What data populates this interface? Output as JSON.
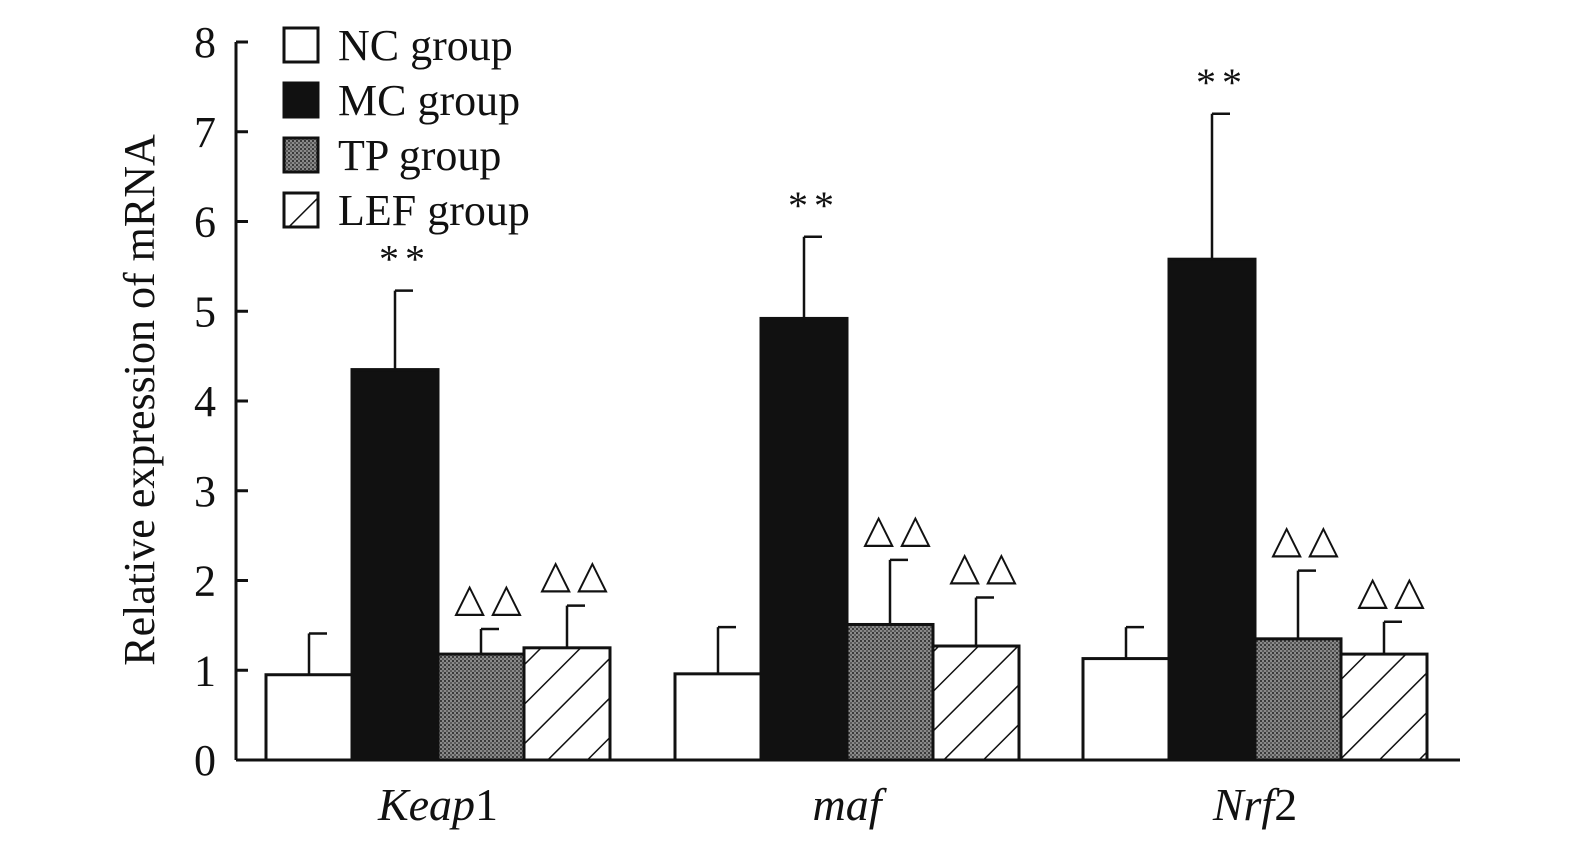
{
  "chart_data": {
    "type": "bar",
    "ylabel": "Relative expression of mRNA",
    "ylim": [
      0,
      8
    ],
    "yticks": [
      "0",
      "1",
      "2",
      "3",
      "4",
      "5",
      "6",
      "7",
      "8"
    ],
    "categories": [
      {
        "italic": "Keap",
        "plain": "1"
      },
      {
        "italic": "maf",
        "plain": ""
      },
      {
        "italic": "Nrf",
        "plain": "2"
      }
    ],
    "series": [
      {
        "name": "NC group",
        "pattern": "white",
        "values": [
          0.95,
          0.96,
          1.13
        ],
        "errors": [
          0.46,
          0.52,
          0.35
        ],
        "marks": [
          "",
          "",
          ""
        ]
      },
      {
        "name": "MC group",
        "pattern": "black",
        "values": [
          4.35,
          4.92,
          5.58
        ],
        "errors": [
          0.88,
          0.91,
          1.62
        ],
        "marks": [
          "**",
          "**",
          "**"
        ]
      },
      {
        "name": "TP group",
        "pattern": "stipple",
        "values": [
          1.18,
          1.51,
          1.35
        ],
        "errors": [
          0.28,
          0.72,
          0.76
        ],
        "marks": [
          "△△",
          "△△",
          "△△"
        ]
      },
      {
        "name": "LEF group",
        "pattern": "hatch",
        "values": [
          1.25,
          1.27,
          1.18
        ],
        "errors": [
          0.47,
          0.54,
          0.36
        ],
        "marks": [
          "△△",
          "△△",
          "△△"
        ]
      }
    ],
    "legend_position": "top-left",
    "grid": false,
    "colors": {
      "axis": "#111111",
      "dark_bar": "#111111",
      "light_bar": "#ffffff"
    }
  }
}
